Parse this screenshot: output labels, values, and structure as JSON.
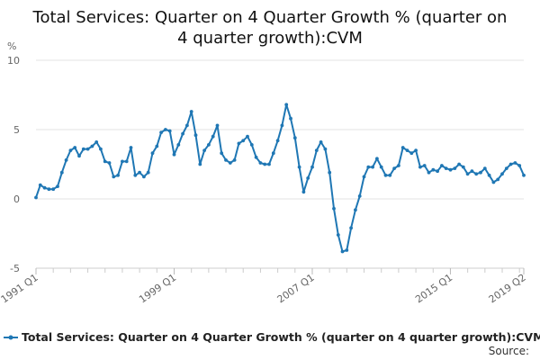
{
  "chart_data": {
    "type": "line",
    "title_lines": [
      "Total Services: Quarter on 4 Quarter Growth % (quarter on",
      "4 quarter growth):CVM"
    ],
    "ylabel": "%",
    "ylim": [
      -5,
      10
    ],
    "yticks": [
      "10",
      "5",
      "0",
      "-5"
    ],
    "x_tick_labels": [
      "1991 Q1",
      "1999 Q1",
      "2007 Q1",
      "2015 Q1",
      "2019 Q2"
    ],
    "grid": true,
    "legend_position": "bottom",
    "x_start": "1991 Q1",
    "x_end": "2019 Q2",
    "series": [
      {
        "name": "Total Services: Quarter on 4 Quarter Growth % (quarter on 4 quarter growth):CVM",
        "color": "#1f77b4",
        "values": [
          0.1,
          1.0,
          0.8,
          0.7,
          0.7,
          0.9,
          1.9,
          2.8,
          3.5,
          3.7,
          3.1,
          3.6,
          3.6,
          3.8,
          4.1,
          3.6,
          2.7,
          2.6,
          1.6,
          1.7,
          2.7,
          2.7,
          3.7,
          1.7,
          1.9,
          1.6,
          1.9,
          3.3,
          3.8,
          4.8,
          5.0,
          4.9,
          3.2,
          3.9,
          4.7,
          5.3,
          6.3,
          4.6,
          2.5,
          3.5,
          3.9,
          4.5,
          5.3,
          3.3,
          2.8,
          2.6,
          2.8,
          4.0,
          4.2,
          4.5,
          3.9,
          3.0,
          2.6,
          2.5,
          2.5,
          3.3,
          4.2,
          5.3,
          6.8,
          5.8,
          4.4,
          2.3,
          0.5,
          1.5,
          2.3,
          3.5,
          4.1,
          3.6,
          1.9,
          -0.7,
          -2.6,
          -3.8,
          -3.7,
          -2.1,
          -0.8,
          0.2,
          1.6,
          2.3,
          2.3,
          2.9,
          2.3,
          1.7,
          1.7,
          2.2,
          2.4,
          3.7,
          3.5,
          3.3,
          3.5,
          2.3,
          2.4,
          1.9,
          2.1,
          2.0,
          2.4,
          2.2,
          2.1,
          2.2,
          2.5,
          2.3,
          1.8,
          2.0,
          1.8,
          1.9,
          2.2,
          1.7,
          1.2,
          1.4,
          1.8,
          2.2,
          2.5,
          2.6,
          2.4,
          1.7
        ]
      }
    ],
    "source_label": "Source:"
  }
}
